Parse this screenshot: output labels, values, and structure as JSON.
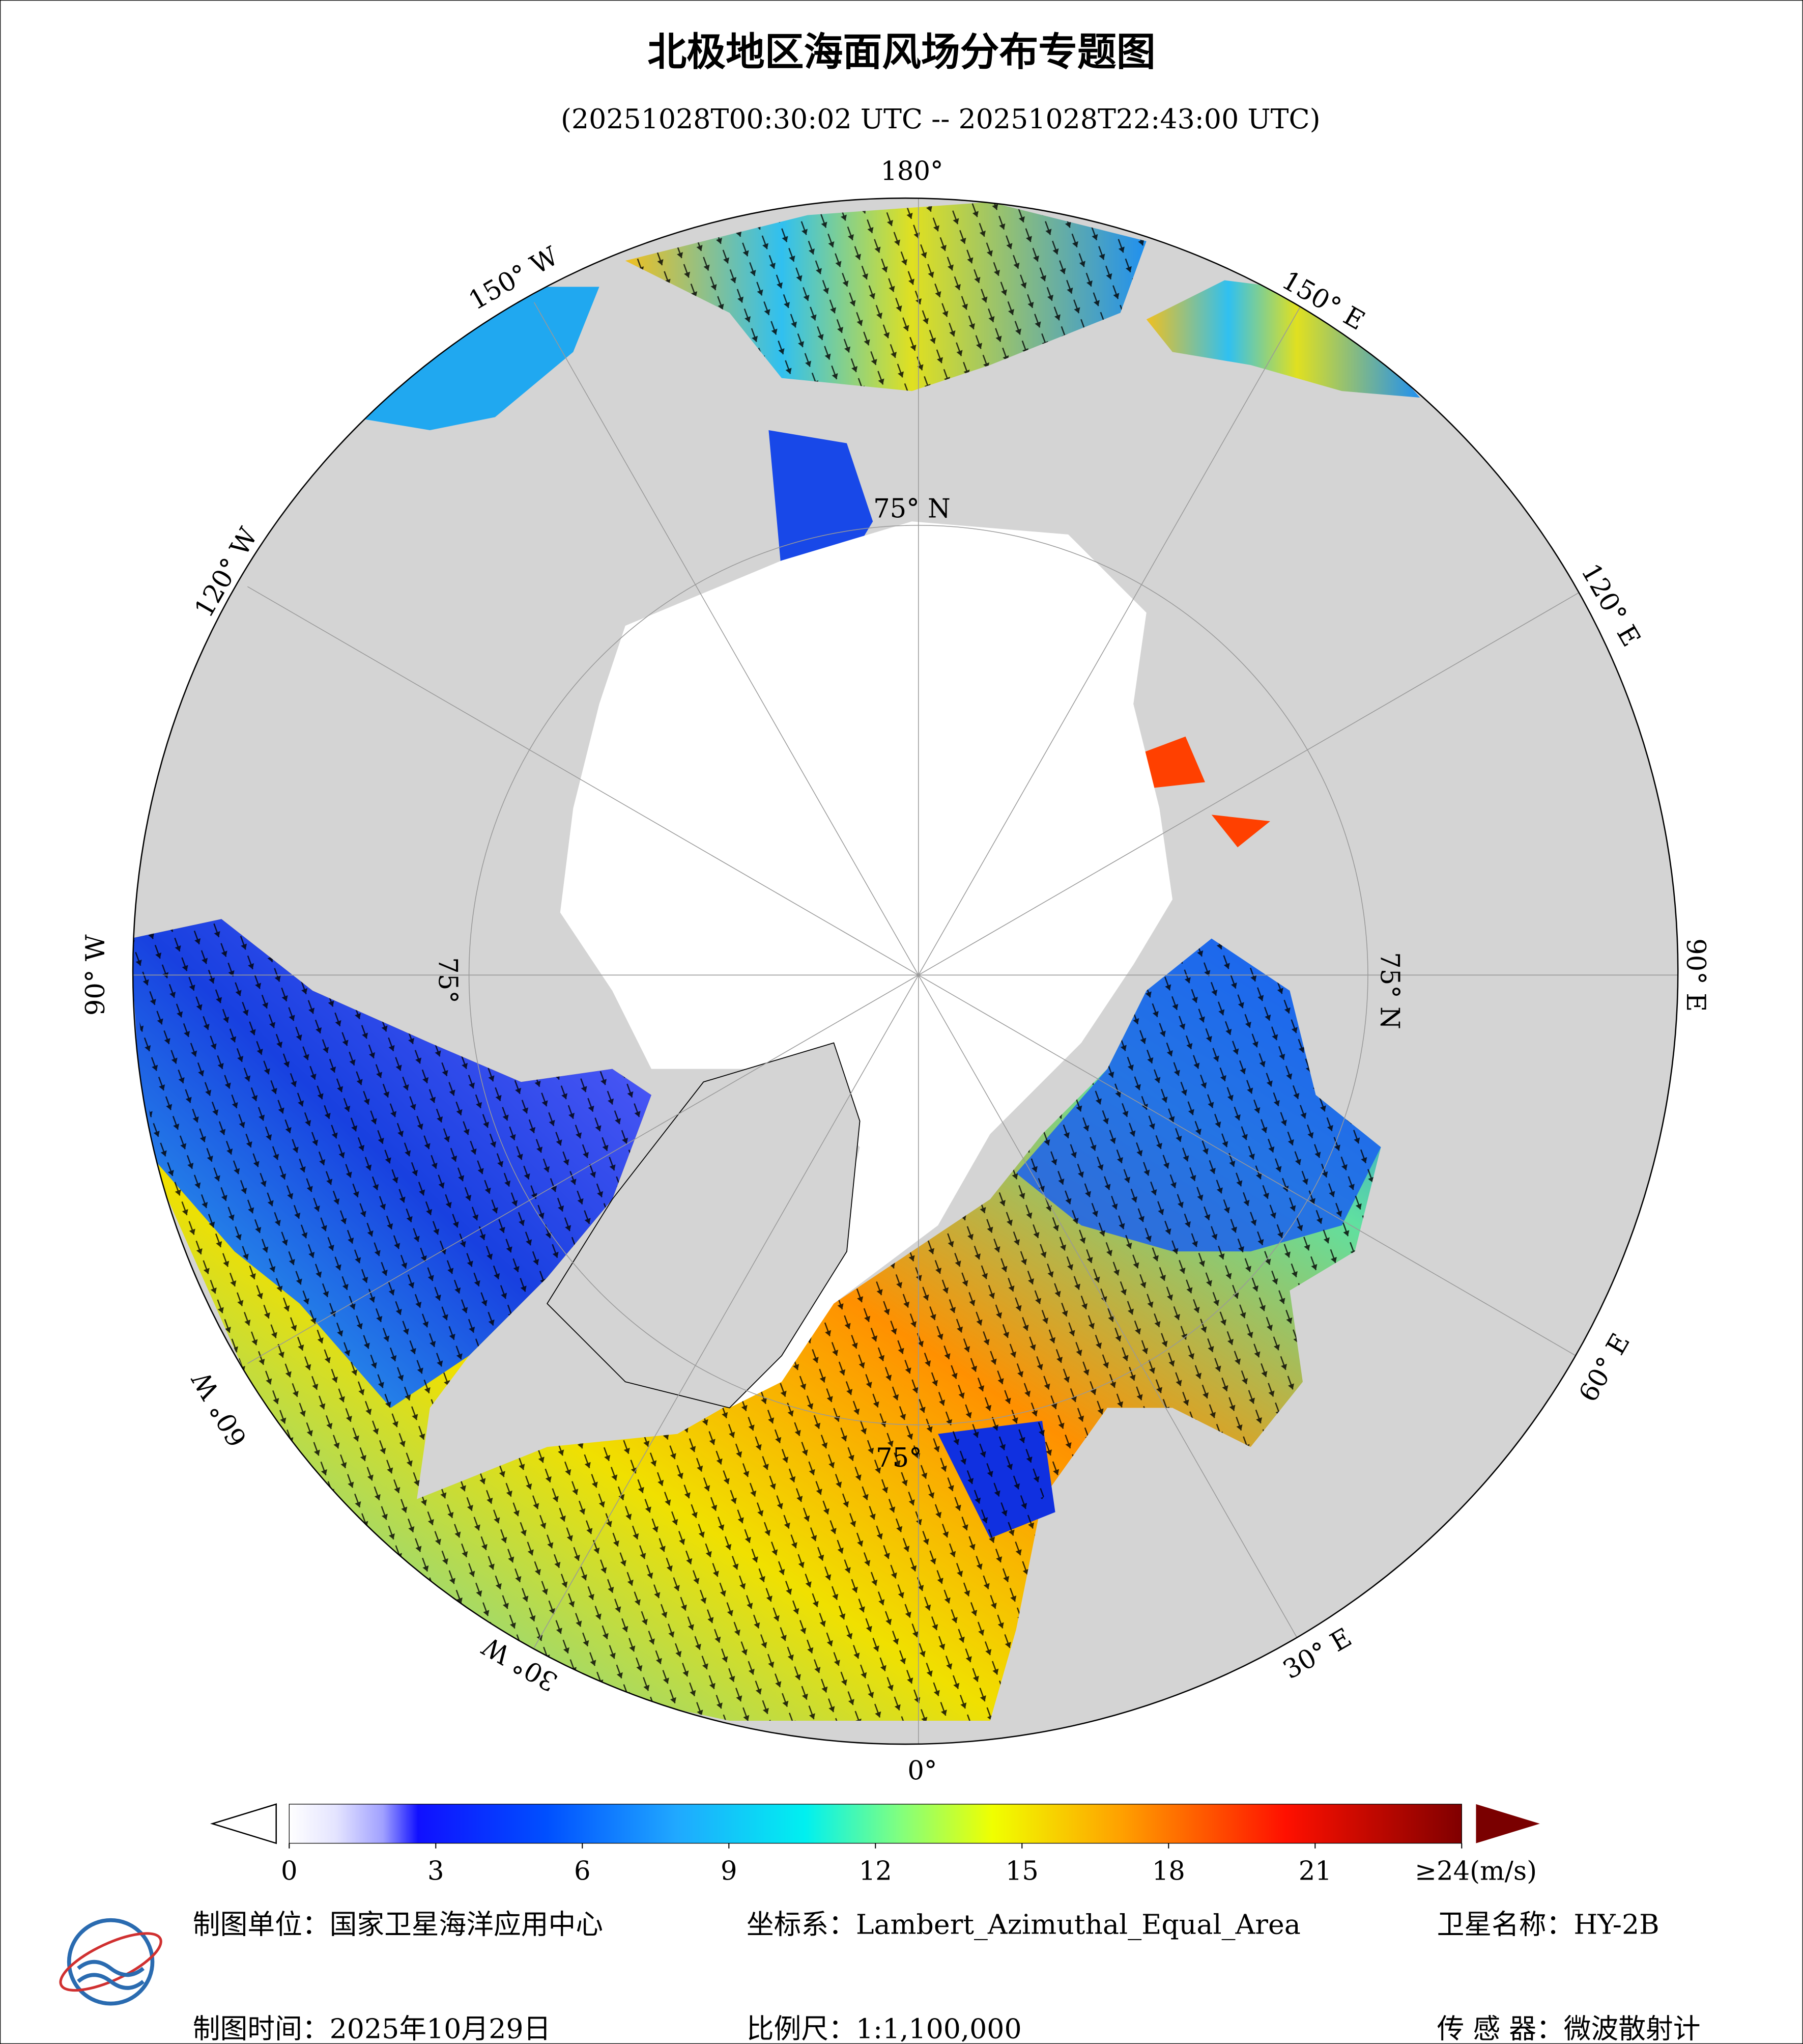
{
  "title": "北极地区海面风场分布专题图",
  "subtitle": "(20251028T00:30:02 UTC -- 20251028T22:43:00 UTC)",
  "map": {
    "longitude_labels": [
      "180°",
      "150° E",
      "120° E",
      "90° E",
      "60° E",
      "30° E",
      "0°",
      "30° W",
      "60° W",
      "90° W",
      "120° W",
      "150° W"
    ],
    "latitude_labels": [
      "75° N",
      "75° N",
      "75°",
      "75°"
    ]
  },
  "colorbar": {
    "lim": [
      0,
      24
    ],
    "ticks": [
      0,
      3,
      6,
      9,
      12,
      15,
      18,
      21,
      {
        "value": 24,
        "label": "≥24(m/s)"
      }
    ]
  },
  "footer": {
    "unit": "制图单位：国家卫星海洋应用中心",
    "projection": "坐标系：Lambert_Azimuthal_Equal_Area",
    "satellite": "卫星名称：HY-2B",
    "date": "制图时间：2025年10月29日",
    "scale": "比例尺：1:1,100,000",
    "sensor": "传 感 器：微波散射计"
  }
}
